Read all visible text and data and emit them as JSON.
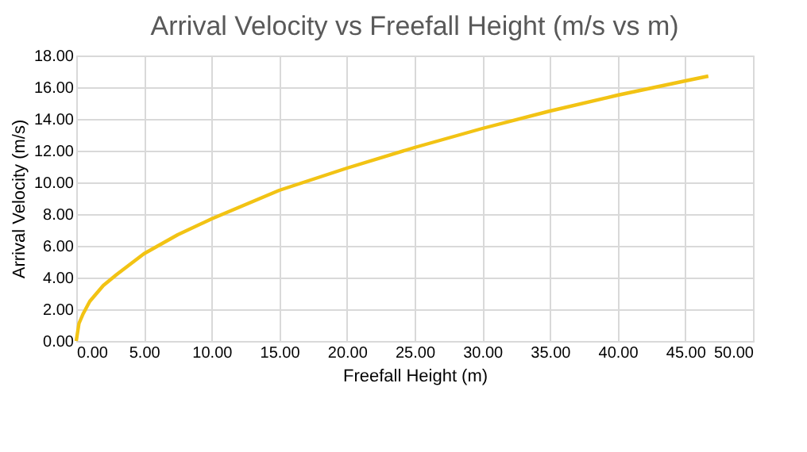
{
  "chart_data": {
    "type": "line",
    "title": "Arrival Velocity vs Freefall Height (m/s vs m)",
    "xlabel": "Freefall Height (m)",
    "ylabel": "Arrival Velocity (m/s)",
    "x": [
      0,
      0.2,
      0.5,
      1,
      2,
      3,
      5,
      7.5,
      10,
      15,
      20,
      25,
      30,
      35,
      40,
      45,
      46.7
    ],
    "series": [
      {
        "color": "#f2c314",
        "values": [
          0,
          1.1,
          1.7,
          2.5,
          3.5,
          4.2,
          5.5,
          6.7,
          7.7,
          9.5,
          10.9,
          12.2,
          13.4,
          14.5,
          15.5,
          16.4,
          16.7
        ]
      }
    ],
    "xlim": [
      0,
      50
    ],
    "ylim": [
      0,
      18
    ],
    "xticks": [
      {
        "value": 0,
        "label": "0.00"
      },
      {
        "value": 5,
        "label": "5.00"
      },
      {
        "value": 10,
        "label": "10.00"
      },
      {
        "value": 15,
        "label": "15.00"
      },
      {
        "value": 20,
        "label": "20.00"
      },
      {
        "value": 25,
        "label": "25.00"
      },
      {
        "value": 30,
        "label": "30.00"
      },
      {
        "value": 35,
        "label": "35.00"
      },
      {
        "value": 40,
        "label": "40.00"
      },
      {
        "value": 45,
        "label": "45.00"
      },
      {
        "value": 50,
        "label": "50.00"
      }
    ],
    "yticks": [
      {
        "value": 0,
        "label": "0.00"
      },
      {
        "value": 2,
        "label": "2.00"
      },
      {
        "value": 4,
        "label": "4.00"
      },
      {
        "value": 6,
        "label": "6.00"
      },
      {
        "value": 8,
        "label": "8.00"
      },
      {
        "value": 10,
        "label": "10.00"
      },
      {
        "value": 12,
        "label": "12.00"
      },
      {
        "value": 14,
        "label": "14.00"
      },
      {
        "value": 16,
        "label": "16.00"
      },
      {
        "value": 18,
        "label": "18.00"
      }
    ],
    "grid": true,
    "marker": "none",
    "line_style": "solid"
  }
}
